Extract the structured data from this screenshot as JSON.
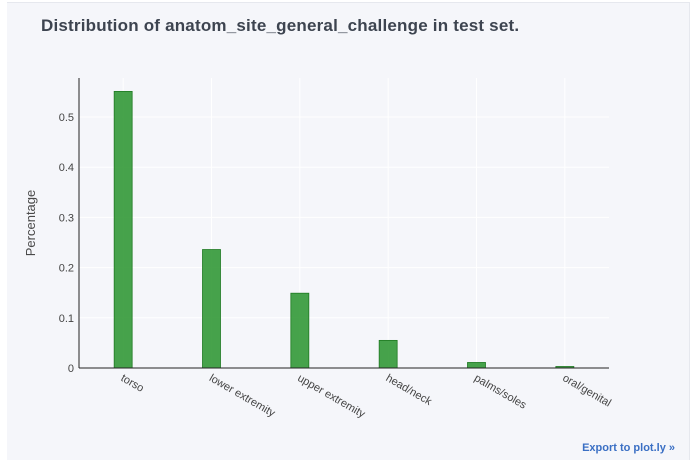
{
  "chart_data": {
    "type": "bar",
    "title": "Distribution of anatom_site_general_challenge in test set.",
    "xlabel": "",
    "ylabel": "Percentage",
    "categories": [
      "torso",
      "lower extremity",
      "upper extremity",
      "head/neck",
      "palms/soles",
      "oral/genital"
    ],
    "values": [
      0.551,
      0.236,
      0.149,
      0.055,
      0.011,
      0.003
    ],
    "ylim": [
      0,
      0.58
    ],
    "yticks": [
      0,
      0.1,
      0.2,
      0.3,
      0.4,
      0.5
    ],
    "ytick_labels": [
      "0",
      "0.1",
      "0.2",
      "0.3",
      "0.4",
      "0.5"
    ],
    "bar_color": "#2e9632",
    "grid": true,
    "legend": "none"
  },
  "export_link": "Export to plot.ly »"
}
